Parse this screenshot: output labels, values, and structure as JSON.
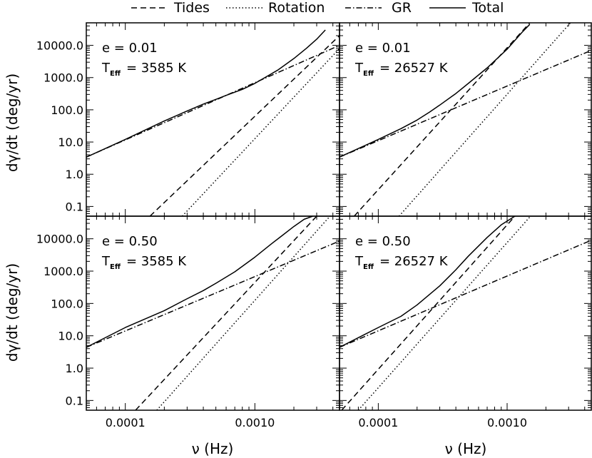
{
  "chart_data": {
    "type": "line",
    "legend": {
      "placement": "top",
      "entries": [
        {
          "name": "Tides",
          "style": "dashed"
        },
        {
          "name": "Rotation",
          "style": "dotted"
        },
        {
          "name": "GR",
          "style": "dash-dot"
        },
        {
          "name": "Total",
          "style": "solid"
        }
      ]
    },
    "xlabel": "ν  (Hz)",
    "ylabel": "dγ/dt  (deg/yr)",
    "xscale": "log",
    "yscale": "log",
    "xlim": [
      5e-05,
      0.0045
    ],
    "ylim": [
      0.05,
      50000
    ],
    "xticks": [
      {
        "value": 0.0001,
        "label": "0.0001"
      },
      {
        "value": 0.001,
        "label": "0.0010"
      }
    ],
    "yticks": [
      {
        "value": 0.1,
        "label": "0.1"
      },
      {
        "value": 1,
        "label": "1.0"
      },
      {
        "value": 10,
        "label": "10.0"
      },
      {
        "value": 100,
        "label": "100.0"
      },
      {
        "value": 1000,
        "label": "1000.0"
      },
      {
        "value": 10000,
        "label": "10000.0"
      }
    ],
    "panels": [
      {
        "e_label": "e  =  0.01",
        "teff_prefix": "T",
        "teff_sub": "Eff",
        "teff_value": "=  3585 K",
        "series": {
          "Tides": {
            "x": [
              0.000155,
              0.0045
            ],
            "y": [
              0.05,
              20000
            ]
          },
          "Rotation": {
            "x": [
              0.000275,
              0.0045
            ],
            "y": [
              0.05,
              8000
            ]
          },
          "GR": {
            "x": [
              5e-05,
              0.0045
            ],
            "y": [
              3.4,
              10000
            ]
          },
          "Total": {
            "x": [
              5e-05,
              0.0001,
              0.0002,
              0.0003,
              0.0004,
              0.0005,
              0.0006,
              0.0008,
              0.001,
              0.0015,
              0.002,
              0.0025,
              0.003,
              0.0035
            ],
            "y": [
              3.4,
              12,
              45,
              92,
              150,
              210,
              280,
              430,
              660,
              1700,
              3900,
              8100,
              15500,
              30000
            ]
          }
        }
      },
      {
        "e_label": "e  =  0.01",
        "teff_prefix": "T",
        "teff_sub": "Eff",
        "teff_value": "=  26527 K",
        "series": {
          "Tides": {
            "x": [
              6.5e-05,
              0.0015
            ],
            "y": [
              0.05,
              50000
            ]
          },
          "Rotation": {
            "x": [
              0.000145,
              0.0031
            ],
            "y": [
              0.05,
              50000
            ]
          },
          "GR": {
            "x": [
              5e-05,
              0.0045
            ],
            "y": [
              3.4,
              7000
            ]
          },
          "Total": {
            "x": [
              5e-05,
              0.0001,
              0.00015,
              0.0002,
              0.00025,
              0.0003,
              0.0004,
              0.0005,
              0.0007,
              0.001,
              0.0013,
              0.0015
            ],
            "y": [
              3.4,
              12,
              26,
              48,
              85,
              140,
              320,
              660,
              2000,
              7600,
              25000,
              45000
            ]
          }
        }
      },
      {
        "e_label": "e  =  0.50",
        "teff_prefix": "T",
        "teff_sub": "Eff",
        "teff_value": "=  3585 K",
        "series": {
          "Tides": {
            "x": [
              0.00012,
              0.003
            ],
            "y": [
              0.05,
              50000
            ]
          },
          "Rotation": {
            "x": [
              0.000175,
              0.0038
            ],
            "y": [
              0.05,
              50000
            ]
          },
          "GR": {
            "x": [
              5e-05,
              0.0045
            ],
            "y": [
              4.4,
              8500
            ]
          },
          "Total": {
            "x": [
              5e-05,
              0.0001,
              0.0002,
              0.0003,
              0.0004,
              0.0005,
              0.0007,
              0.001,
              0.0013,
              0.0016,
              0.002,
              0.0024,
              0.0028
            ],
            "y": [
              4.4,
              18,
              60,
              140,
              250,
              420,
              950,
              2700,
              6300,
              12000,
              24000,
              40000,
              50000
            ]
          }
        }
      },
      {
        "e_label": "e  =  0.50",
        "teff_prefix": "T",
        "teff_sub": "Eff",
        "teff_value": "=  26527 K",
        "series": {
          "Tides": {
            "x": [
              5.2e-05,
              0.00115
            ],
            "y": [
              0.05,
              50000
            ]
          },
          "Rotation": {
            "x": [
              7e-05,
              0.00152
            ],
            "y": [
              0.05,
              50000
            ]
          },
          "GR": {
            "x": [
              5e-05,
              0.0045
            ],
            "y": [
              4.4,
              9000
            ]
          },
          "Total": {
            "x": [
              5e-05,
              0.0001,
              0.00015,
              0.0002,
              0.0003,
              0.0004,
              0.0005,
              0.0007,
              0.0009,
              0.00115
            ],
            "y": [
              4.4,
              18,
              40,
              90,
              350,
              1100,
              2900,
              11000,
              27000,
              50000
            ]
          }
        }
      }
    ]
  }
}
